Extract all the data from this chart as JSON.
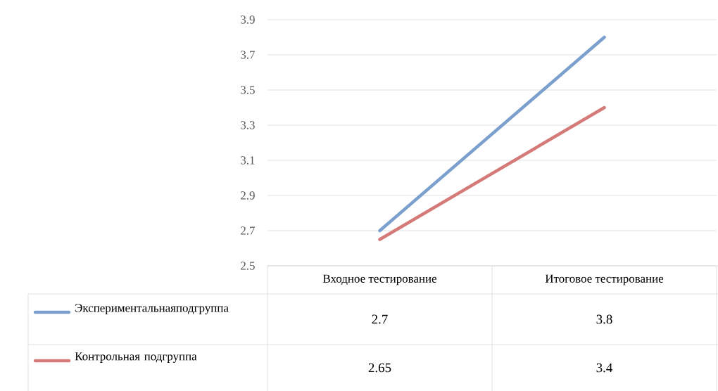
{
  "chart_data": {
    "type": "line",
    "categories": [
      "Входное тестирование",
      "Итоговое тестирование"
    ],
    "series": [
      {
        "name": "Экспериментальнаяподгруппа",
        "color": "#7ba0cd",
        "values": [
          2.7,
          3.8
        ]
      },
      {
        "name": "Контрольная подгруппа",
        "color": "#d47a78",
        "values": [
          2.65,
          3.4
        ]
      }
    ],
    "ylim": [
      2.5,
      3.9
    ],
    "yticks": [
      2.5,
      2.7,
      2.9,
      3.1,
      3.3,
      3.5,
      3.7,
      3.9
    ],
    "grid": "y",
    "legend": "bottom left",
    "data_labels": true,
    "marker": "none",
    "line_style": "solid"
  }
}
